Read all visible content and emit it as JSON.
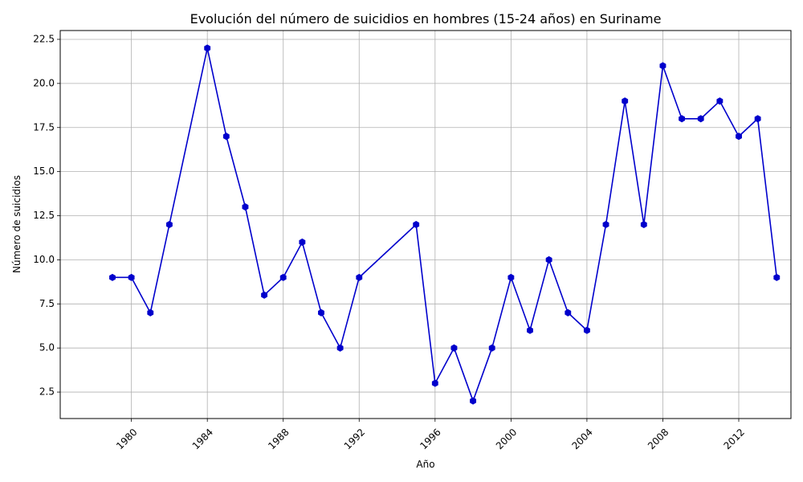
{
  "chart_data": {
    "type": "line",
    "title": "Evolución del número de suicidios en hombres (15-24 años) en Suriname",
    "xlabel": "Año",
    "ylabel": "Número de suicidios",
    "x": [
      1979,
      1980,
      1981,
      1982,
      1984,
      1985,
      1986,
      1987,
      1988,
      1989,
      1990,
      1991,
      1992,
      1995,
      1996,
      1997,
      1998,
      1999,
      2000,
      2001,
      2002,
      2003,
      2004,
      2005,
      2006,
      2007,
      2008,
      2009,
      2010,
      2011,
      2012,
      2013,
      2014
    ],
    "series": [
      {
        "values": [
          9,
          9,
          7,
          12,
          22,
          17,
          13,
          8,
          9,
          11,
          7,
          5,
          9,
          12,
          3,
          5,
          2,
          5,
          9,
          6,
          10,
          7,
          6,
          12,
          19,
          12,
          21,
          18,
          18,
          19,
          17,
          18,
          9
        ],
        "color": "#0000cc",
        "marker": "hexagon"
      }
    ],
    "xlim": [
      1976.25,
      2014.75
    ],
    "ylim": [
      1.0,
      23.0
    ],
    "xticks": [
      "1980",
      "1984",
      "1988",
      "1992",
      "1996",
      "2000",
      "2004",
      "2008",
      "2012"
    ],
    "yticks": [
      "2.5",
      "5.0",
      "7.5",
      "10.0",
      "12.5",
      "15.0",
      "17.5",
      "20.0",
      "22.5"
    ],
    "xtick_rotation": 45,
    "grid": true,
    "legend": "none"
  }
}
